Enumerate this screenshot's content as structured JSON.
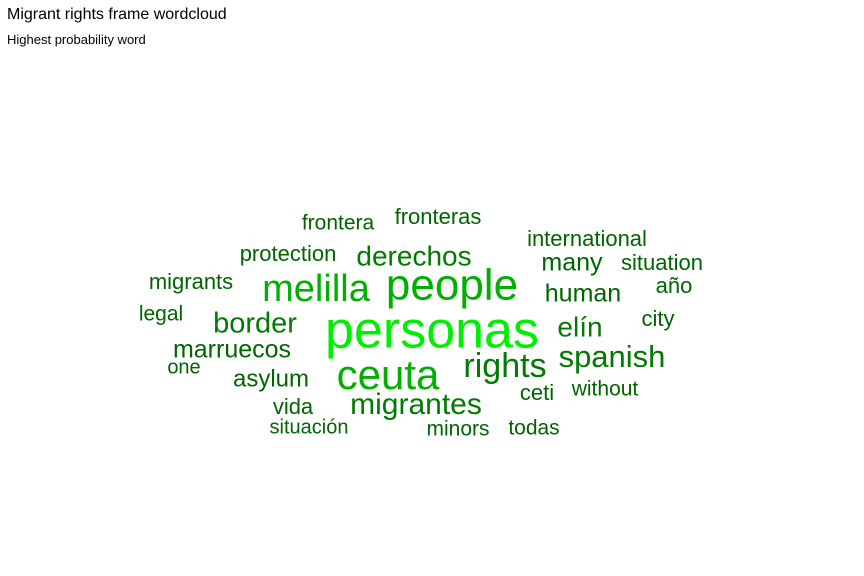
{
  "chart_data": {
    "type": "wordcloud",
    "title": "Migrant rights frame wordcloud",
    "subtitle": "Highest probability word",
    "colors": {
      "high": "#00ee00",
      "mid": "#00b000",
      "low": "#007a00",
      "base": "#006400"
    },
    "words": [
      {
        "word": "personas",
        "weight": 1.0
      },
      {
        "word": "ceuta",
        "weight": 0.82
      },
      {
        "word": "people",
        "weight": 0.78
      },
      {
        "word": "melilla",
        "weight": 0.72
      },
      {
        "word": "rights",
        "weight": 0.62
      },
      {
        "word": "migrantes",
        "weight": 0.52
      },
      {
        "word": "spanish",
        "weight": 0.52
      },
      {
        "word": "border",
        "weight": 0.5
      },
      {
        "word": "derechos",
        "weight": 0.48
      },
      {
        "word": "elín",
        "weight": 0.46
      },
      {
        "word": "marruecos",
        "weight": 0.42
      },
      {
        "word": "many",
        "weight": 0.42
      },
      {
        "word": "human",
        "weight": 0.42
      },
      {
        "word": "asylum",
        "weight": 0.38
      },
      {
        "word": "fronteras",
        "weight": 0.34
      },
      {
        "word": "international",
        "weight": 0.34
      },
      {
        "word": "frontera",
        "weight": 0.32
      },
      {
        "word": "protection",
        "weight": 0.32
      },
      {
        "word": "situation",
        "weight": 0.32
      },
      {
        "word": "migrants",
        "weight": 0.32
      },
      {
        "word": "año",
        "weight": 0.32
      },
      {
        "word": "city",
        "weight": 0.32
      },
      {
        "word": "legal",
        "weight": 0.3
      },
      {
        "word": "ceti",
        "weight": 0.32
      },
      {
        "word": "without",
        "weight": 0.3
      },
      {
        "word": "vida",
        "weight": 0.32
      },
      {
        "word": "minors",
        "weight": 0.3
      },
      {
        "word": "todas",
        "weight": 0.3
      },
      {
        "word": "situación",
        "weight": 0.28
      },
      {
        "word": "one",
        "weight": 0.28
      }
    ]
  }
}
